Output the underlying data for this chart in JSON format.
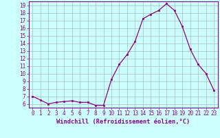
{
  "x": [
    0,
    1,
    2,
    3,
    4,
    5,
    6,
    7,
    8,
    9,
    10,
    11,
    12,
    13,
    14,
    15,
    16,
    17,
    18,
    19,
    20,
    21,
    22,
    23
  ],
  "y": [
    7.0,
    6.5,
    6.0,
    6.2,
    6.3,
    6.4,
    6.2,
    6.2,
    5.8,
    5.8,
    9.2,
    11.2,
    12.5,
    14.2,
    17.2,
    17.8,
    18.3,
    19.2,
    18.3,
    16.2,
    13.2,
    11.2,
    10.0,
    7.8
  ],
  "line_color": "#880088",
  "marker": "s",
  "marker_size": 2.0,
  "bg_color": "#ccffff",
  "grid_color": "#aabbbb",
  "xlabel": "Windchill (Refroidissement éolien,°C)",
  "xlim": [
    -0.5,
    23.5
  ],
  "ylim": [
    5.5,
    19.5
  ],
  "yticks": [
    6,
    7,
    8,
    9,
    10,
    11,
    12,
    13,
    14,
    15,
    16,
    17,
    18,
    19
  ],
  "xticks": [
    0,
    1,
    2,
    3,
    4,
    5,
    6,
    7,
    8,
    9,
    10,
    11,
    12,
    13,
    14,
    15,
    16,
    17,
    18,
    19,
    20,
    21,
    22,
    23
  ],
  "tick_fontsize": 5.5,
  "xlabel_fontsize": 6.2
}
